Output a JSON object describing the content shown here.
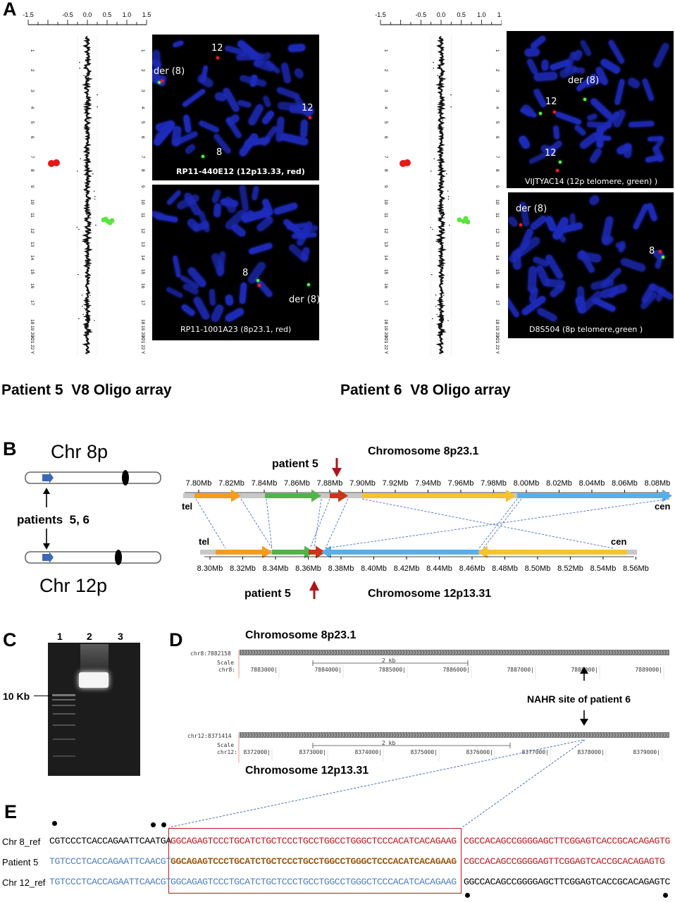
{
  "panel_a": {
    "letter": "A",
    "axis_ticks": [
      "-1.5",
      "-0.5",
      "0.0",
      "0.5",
      "1.0",
      "1.5"
    ],
    "chromosome_labels": [
      "1",
      "2",
      "3",
      "4",
      "5",
      "6",
      "7",
      "8",
      "9",
      "10",
      "11",
      "12",
      "13",
      "14",
      "15",
      "16",
      "17",
      "18 19 20 21 22",
      "X",
      "Y"
    ],
    "patient5": {
      "caption": "Patient 5  V8 Oligo array",
      "fish_top": {
        "label": "RP11-440E12 (12p13.33, red)",
        "tags": [
          "12",
          "der (8)",
          "12",
          "8"
        ]
      },
      "fish_bottom": {
        "label": "RP11-1001A23 (8p23.1, red)",
        "tags": [
          "8",
          "der (8)"
        ]
      }
    },
    "patient6": {
      "caption": "Patient 6  V8 Oligo array",
      "fish_top": {
        "label": "VIJTYAC14 (12p telomere, green) )",
        "tags": [
          "der (8)",
          "12",
          "12"
        ]
      },
      "fish_bottom": {
        "label": "D8S504 (8p telomere,green )",
        "tags": [
          "der (8)",
          "8"
        ]
      }
    },
    "colors": {
      "loss": "#e8191a",
      "gain": "#58e63c",
      "dapi": "#1e2bb8"
    }
  },
  "panel_b": {
    "letter": "B",
    "chr8_label": "Chr 8p",
    "chr12_label": "Chr 12p",
    "patients_label": "patients  5, 6",
    "top_title": "Chromosome 8p23.1",
    "bottom_title": "Chromosome 12p13.31",
    "patient5_top": "patient 5",
    "patient5_bottom": "patient 5",
    "tel": "tel",
    "cen": "cen",
    "top_ticks": [
      "7.80Mb",
      "7.82Mb",
      "7.84Mb",
      "7.86Mb",
      "7.88Mb",
      "7.90Mb",
      "7.92Mb",
      "7.94Mb",
      "7.96Mb",
      "7.98Mb",
      "8.00Mb",
      "8.02Mb",
      "8.04Mb",
      "8.06Mb",
      "8.08Mb"
    ],
    "bottom_ticks": [
      "8.30Mb",
      "8.32Mb",
      "8.34Mb",
      "8.36Mb",
      "8.38Mb",
      "8.40Mb",
      "8.42Mb",
      "8.44Mb",
      "8.46Mb",
      "8.48Mb",
      "8.50Mb",
      "8.52Mb",
      "8.54Mb",
      "8.56Mb"
    ],
    "colors": {
      "orange": "#f39c1e",
      "green": "#52b34a",
      "red": "#c8361a",
      "yellow": "#f7c230",
      "blue": "#5aaee8",
      "gray": "#c8c8c8",
      "marker": "#b0141a"
    }
  },
  "panel_c": {
    "letter": "C",
    "lanes": [
      "1",
      "2",
      "3"
    ],
    "marker_label": "10 Kb"
  },
  "panel_d": {
    "letter": "D",
    "top_title": "Chromosome 8p23.1",
    "bottom_title": "Chromosome 12p13.31",
    "top_track_label": "chr8:7882158",
    "bottom_track_label": "chr12:8371414",
    "scale_label": "Scale",
    "scale_text": "2 kb",
    "top_chr": "chr8:",
    "bottom_chr": "chr12:",
    "top_positions": [
      "7883000|",
      "7884000|",
      "7885000|",
      "7886000|",
      "7887000|",
      "7888000|",
      "7889000|"
    ],
    "bottom_positions": [
      "8372000|",
      "8373000|",
      "8374000|",
      "8375000|",
      "8376000|",
      "8377000|",
      "8378000|",
      "8379000|"
    ],
    "nahr_label": "NAHR site of patient 6"
  },
  "panel_e": {
    "letter": "E",
    "rows": [
      {
        "label": "Chr 8_ref",
        "left": "CGTCCCTCACCAGAATTCAATGA",
        "mid": "GGCAGAGTCCCTGCATCTGCTCCCTGCCTGGCCTGGGCTCCCACATCACAGAAG",
        "right": "CGCCACAGCCGGGGAGCTTCGGAGTCACCGCACAGAGTG"
      },
      {
        "label": "Patient 5",
        "left": "TGTCCCTCACCAGAATTCAACGT",
        "mid": "GGCAGAGTCCCTGCATCTGCTCCCTGCCTGGCCTGGGCTCCCACATCACAGAAG",
        "right": "CGCCACAGCCGGGGAGTTCGGAGTCACCGCACAGAGTG"
      },
      {
        "label": "Chr 12_ref",
        "left": "TGTCCCTCACCAGAATTCAACGT",
        "mid": "GGCAGAGTCCCTGCATCTGCTCCCTGCCTGGCCTGGGCTCCCACATCACAGAAG",
        "right": "GGCCACAGCCGGGGAGCTTCGGAGTCACCGCACAGAGTC"
      }
    ],
    "colors": {
      "black": "#000000",
      "red": "#c0151b",
      "blue": "#4a7ec4",
      "brown": "#9c5a12",
      "box": "#c0151b"
    }
  }
}
